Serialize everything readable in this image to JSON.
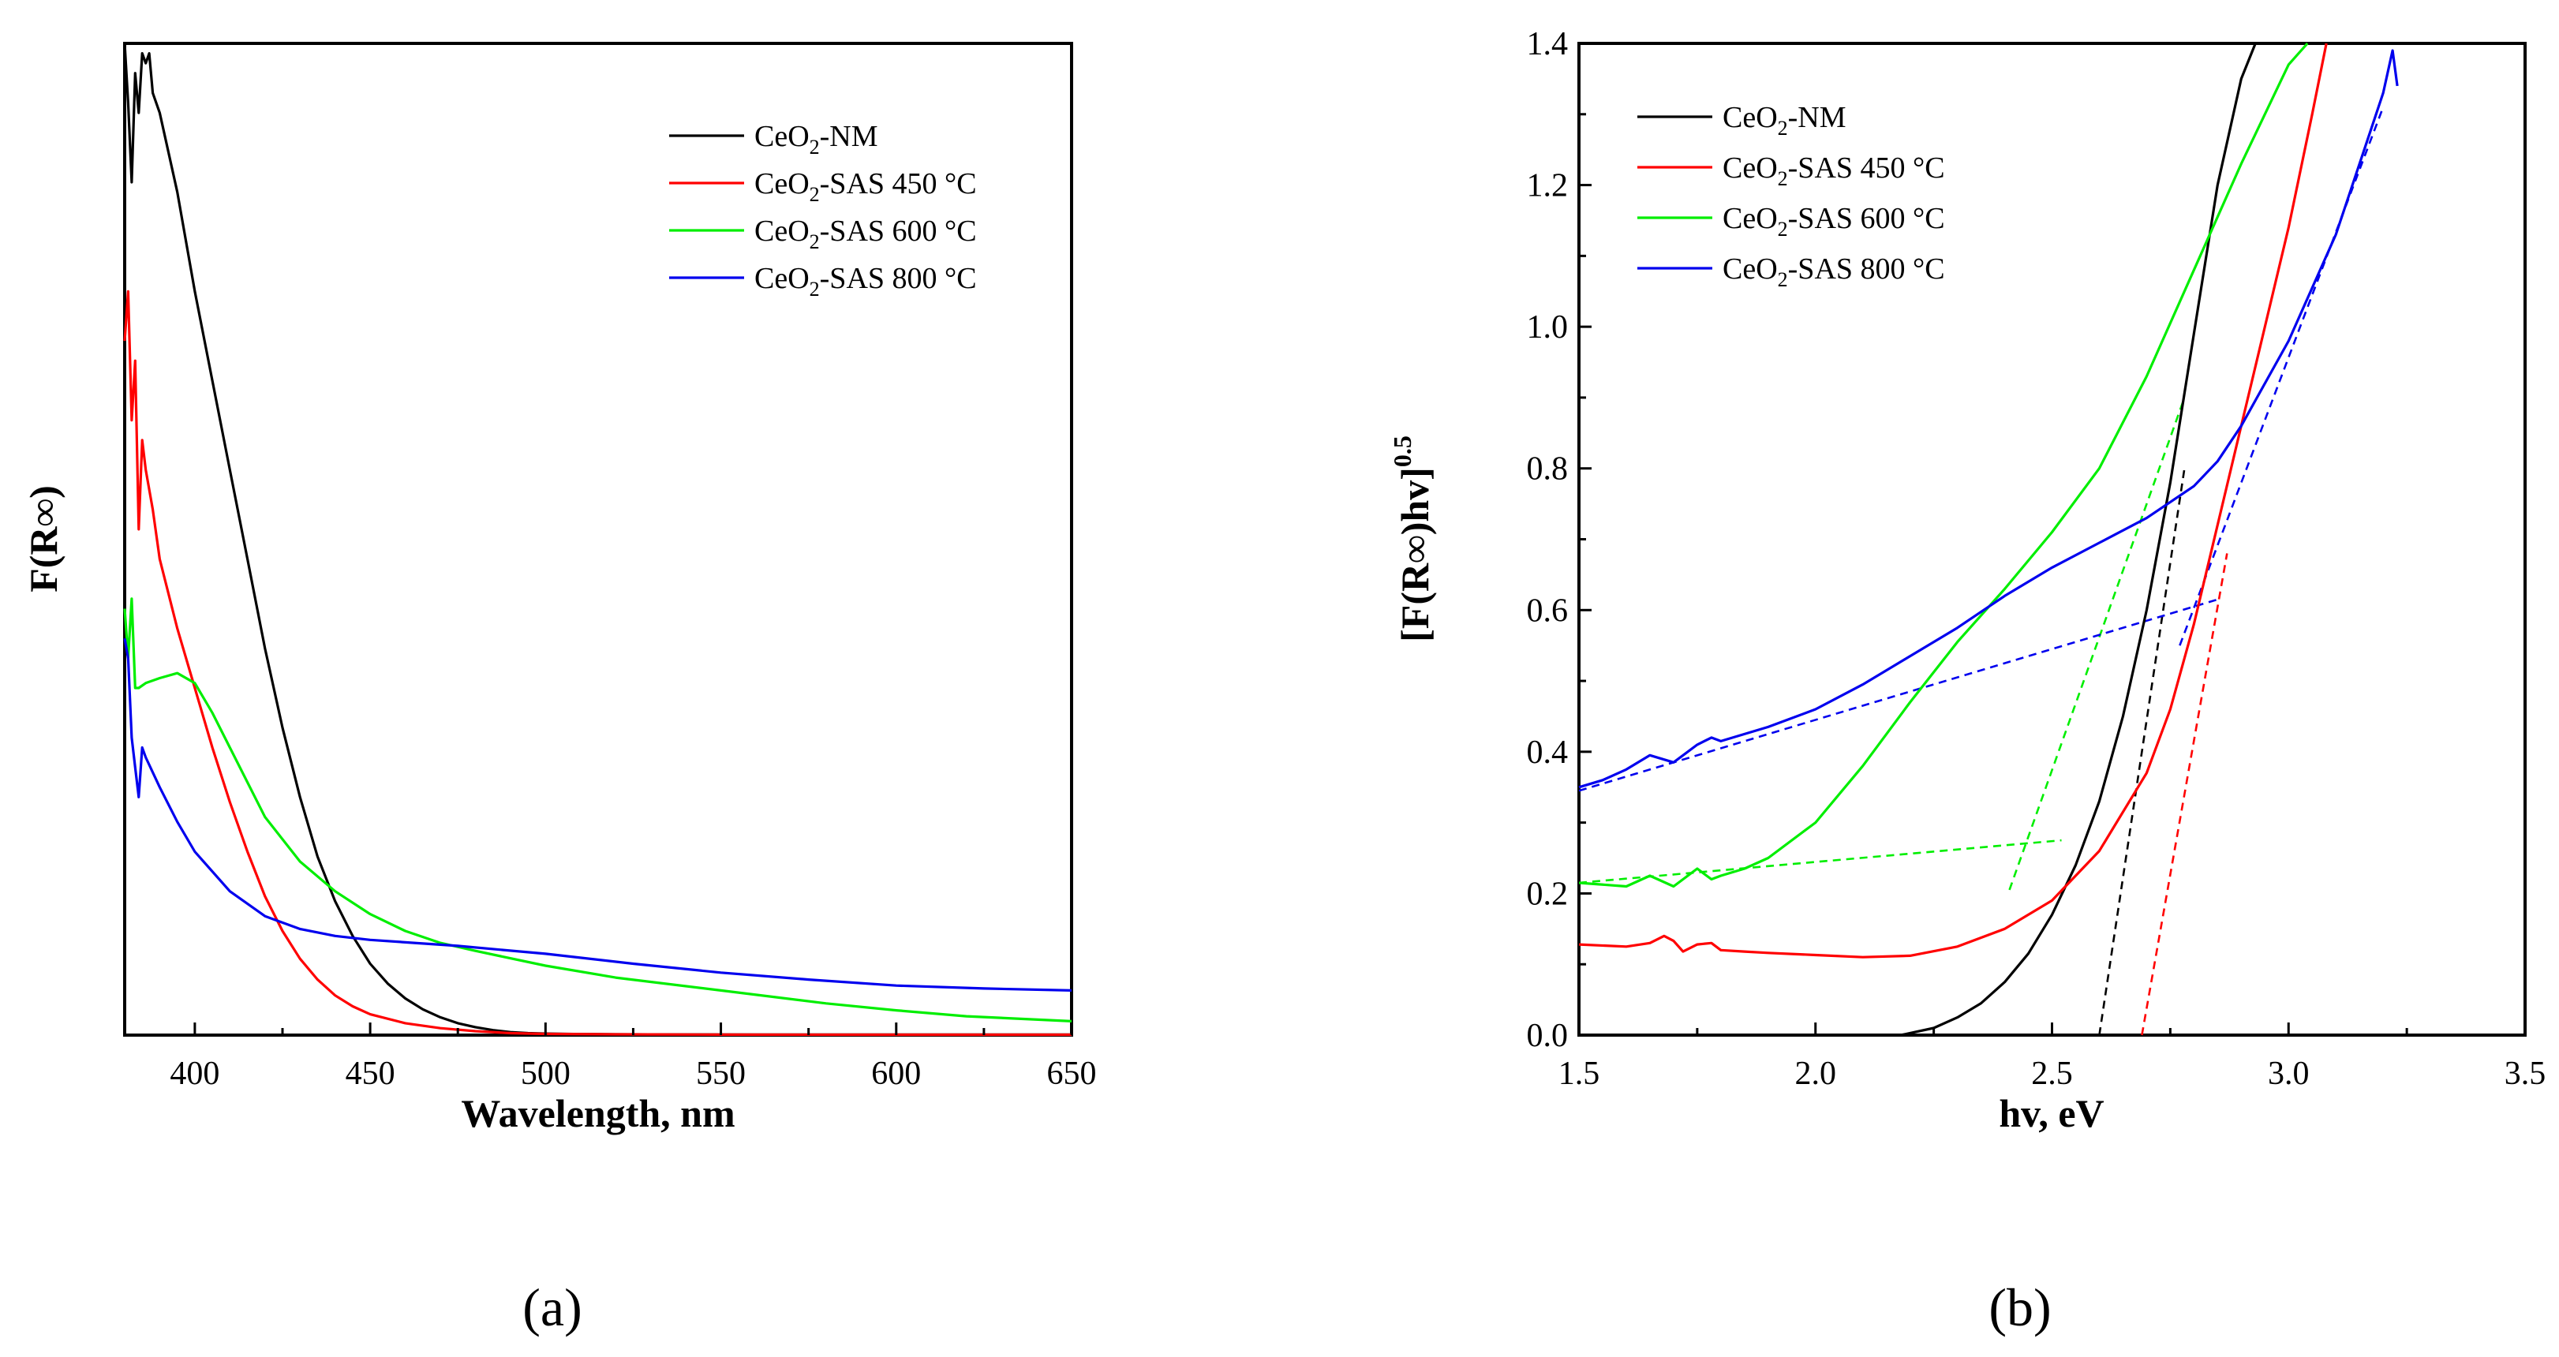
{
  "chart_data": [
    {
      "type": "line",
      "panel_label": "(a)",
      "xlabel": "Wavelength, nm",
      "ylabel": "F(R∞)",
      "xlim": [
        380,
        650
      ],
      "ylim": [
        0,
        1.0
      ],
      "x_ticks": [
        "400",
        "450",
        "500",
        "550",
        "600",
        "650"
      ],
      "x_tick_values": [
        400,
        450,
        500,
        550,
        600,
        650
      ],
      "y_tick_labels_shown": false,
      "legend_position": "top-right",
      "series": [
        {
          "name": "CeO2-NM",
          "label_main": "CeO",
          "label_sub": "2",
          "label_rest": "-NM",
          "color": "#000000",
          "x": [
            380,
            381,
            382,
            383,
            384,
            385,
            386,
            387,
            388,
            390,
            395,
            400,
            405,
            410,
            415,
            420,
            425,
            430,
            435,
            440,
            445,
            450,
            455,
            460,
            465,
            470,
            475,
            480,
            485,
            490,
            495,
            500,
            510,
            520,
            540,
            560,
            600,
            650
          ],
          "y": [
            1.0,
            0.94,
            0.86,
            0.97,
            0.93,
            0.99,
            0.98,
            0.99,
            0.95,
            0.93,
            0.85,
            0.75,
            0.66,
            0.57,
            0.48,
            0.39,
            0.31,
            0.24,
            0.18,
            0.135,
            0.1,
            0.072,
            0.052,
            0.037,
            0.026,
            0.018,
            0.012,
            0.008,
            0.005,
            0.003,
            0.002,
            0.0015,
            0.001,
            0.0008,
            0.0006,
            0.0005,
            0.0005,
            0.0005
          ]
        },
        {
          "name": "CeO2-SAS 450 °C",
          "label_main": "CeO",
          "label_sub": "2",
          "label_rest": "-SAS 450 °C",
          "color": "#ff0000",
          "x": [
            380,
            381,
            382,
            383,
            384,
            385,
            386,
            388,
            390,
            395,
            400,
            405,
            410,
            415,
            420,
            425,
            430,
            435,
            440,
            445,
            450,
            460,
            470,
            480,
            490,
            500,
            520,
            550,
            600,
            650
          ],
          "y": [
            0.7,
            0.75,
            0.62,
            0.68,
            0.51,
            0.6,
            0.57,
            0.53,
            0.48,
            0.41,
            0.35,
            0.29,
            0.235,
            0.185,
            0.14,
            0.105,
            0.077,
            0.056,
            0.04,
            0.029,
            0.021,
            0.012,
            0.007,
            0.004,
            0.002,
            0.0012,
            0.0008,
            0.0005,
            0.0004,
            0.0004
          ]
        },
        {
          "name": "CeO2-SAS 600 °C",
          "label_main": "CeO",
          "label_sub": "2",
          "label_rest": "-SAS 600 °C",
          "color": "#00ee00",
          "x": [
            380,
            381,
            382,
            383,
            384,
            386,
            390,
            395,
            400,
            405,
            410,
            420,
            430,
            440,
            450,
            460,
            470,
            480,
            500,
            520,
            550,
            580,
            600,
            620,
            650
          ],
          "y": [
            0.43,
            0.38,
            0.44,
            0.35,
            0.35,
            0.355,
            0.36,
            0.365,
            0.355,
            0.325,
            0.29,
            0.22,
            0.175,
            0.145,
            0.122,
            0.105,
            0.093,
            0.085,
            0.07,
            0.058,
            0.045,
            0.032,
            0.025,
            0.019,
            0.014
          ]
        },
        {
          "name": "CeO2-SAS 800 °C",
          "label_main": "CeO",
          "label_sub": "2",
          "label_rest": "-SAS 800 °C",
          "color": "#0000ee",
          "x": [
            380,
            381,
            382,
            383,
            384,
            385,
            386,
            390,
            395,
            400,
            410,
            420,
            430,
            440,
            450,
            475,
            500,
            525,
            550,
            575,
            600,
            625,
            650
          ],
          "y": [
            0.4,
            0.38,
            0.3,
            0.27,
            0.24,
            0.29,
            0.28,
            0.25,
            0.215,
            0.185,
            0.145,
            0.12,
            0.107,
            0.1,
            0.096,
            0.09,
            0.082,
            0.072,
            0.063,
            0.056,
            0.05,
            0.047,
            0.045
          ]
        }
      ]
    },
    {
      "type": "line",
      "panel_label": "(b)",
      "xlabel": "hv, eV",
      "ylabel": "[F(R∞)hv]",
      "ylabel_sup": "0.5",
      "xlim": [
        1.5,
        3.5
      ],
      "ylim": [
        0.0,
        1.4
      ],
      "x_ticks": [
        "1.5",
        "2.0",
        "2.5",
        "3.0",
        "3.5"
      ],
      "x_tick_values": [
        1.5,
        2.0,
        2.5,
        3.0,
        3.5
      ],
      "y_ticks": [
        "0.0",
        "0.2",
        "0.4",
        "0.6",
        "0.8",
        "1.0",
        "1.2",
        "1.4"
      ],
      "y_tick_values": [
        0.0,
        0.2,
        0.4,
        0.6,
        0.8,
        1.0,
        1.2,
        1.4
      ],
      "legend_position": "top-left",
      "series": [
        {
          "name": "CeO2-NM",
          "label_main": "CeO",
          "label_sub": "2",
          "label_rest": "-NM",
          "color": "#000000",
          "x": [
            2.18,
            2.25,
            2.3,
            2.35,
            2.4,
            2.45,
            2.5,
            2.55,
            2.6,
            2.65,
            2.7,
            2.75,
            2.8,
            2.85,
            2.9,
            2.93
          ],
          "y": [
            0.0,
            0.01,
            0.025,
            0.045,
            0.075,
            0.115,
            0.17,
            0.24,
            0.33,
            0.45,
            0.6,
            0.78,
            0.99,
            1.2,
            1.35,
            1.4
          ]
        },
        {
          "name": "CeO2-SAS 450 °C",
          "label_main": "CeO",
          "label_sub": "2",
          "label_rest": "-SAS 450 °C",
          "color": "#ff0000",
          "x": [
            1.5,
            1.6,
            1.65,
            1.68,
            1.7,
            1.72,
            1.75,
            1.78,
            1.8,
            1.85,
            1.9,
            2.0,
            2.1,
            2.2,
            2.3,
            2.4,
            2.5,
            2.6,
            2.7,
            2.75,
            2.8,
            2.85,
            2.9,
            2.95,
            3.0,
            3.05,
            3.08
          ],
          "y": [
            0.128,
            0.125,
            0.13,
            0.14,
            0.133,
            0.118,
            0.128,
            0.13,
            0.12,
            0.118,
            0.116,
            0.113,
            0.11,
            0.112,
            0.125,
            0.15,
            0.19,
            0.26,
            0.37,
            0.46,
            0.58,
            0.72,
            0.86,
            1.0,
            1.14,
            1.3,
            1.4
          ]
        },
        {
          "name": "CeO2-SAS 600 °C",
          "label_main": "CeO",
          "label_sub": "2",
          "label_rest": "-SAS 600 °C",
          "color": "#00ee00",
          "x": [
            1.5,
            1.6,
            1.65,
            1.7,
            1.75,
            1.78,
            1.8,
            1.85,
            1.9,
            2.0,
            2.1,
            2.2,
            2.3,
            2.4,
            2.5,
            2.6,
            2.7,
            2.8,
            2.9,
            3.0,
            3.04
          ],
          "y": [
            0.215,
            0.21,
            0.225,
            0.21,
            0.235,
            0.22,
            0.225,
            0.235,
            0.25,
            0.3,
            0.38,
            0.47,
            0.555,
            0.63,
            0.71,
            0.8,
            0.93,
            1.08,
            1.23,
            1.37,
            1.4
          ]
        },
        {
          "name": "CeO2-SAS 800 °C",
          "label_main": "CeO",
          "label_sub": "2",
          "label_rest": "-SAS 800 °C",
          "color": "#0000ee",
          "x": [
            1.5,
            1.55,
            1.6,
            1.65,
            1.7,
            1.75,
            1.78,
            1.8,
            1.9,
            2.0,
            2.1,
            2.2,
            2.3,
            2.4,
            2.5,
            2.6,
            2.7,
            2.8,
            2.85,
            2.9,
            3.0,
            3.1,
            3.2,
            3.22,
            3.23
          ],
          "y": [
            0.35,
            0.36,
            0.375,
            0.395,
            0.385,
            0.41,
            0.42,
            0.415,
            0.435,
            0.46,
            0.495,
            0.535,
            0.575,
            0.62,
            0.66,
            0.695,
            0.73,
            0.775,
            0.81,
            0.86,
            0.98,
            1.13,
            1.33,
            1.39,
            1.34
          ]
        }
      ],
      "fit_lines": [
        {
          "color": "#000000",
          "x": [
            2.6,
            2.78
          ],
          "y": [
            0.0,
            0.8
          ]
        },
        {
          "color": "#ff0000",
          "x": [
            2.69,
            2.87
          ],
          "y": [
            0.0,
            0.68
          ]
        },
        {
          "color": "#00ee00",
          "x": [
            2.41,
            2.78
          ],
          "y": [
            0.205,
            0.9
          ]
        },
        {
          "color": "#00ee00",
          "x": [
            1.5,
            2.52
          ],
          "y": [
            0.215,
            0.275
          ]
        },
        {
          "color": "#0000ee",
          "x": [
            1.5,
            2.85
          ],
          "y": [
            0.345,
            0.615
          ]
        },
        {
          "color": "#0000ee",
          "x": [
            2.77,
            3.2
          ],
          "y": [
            0.55,
            1.31
          ]
        }
      ]
    }
  ]
}
